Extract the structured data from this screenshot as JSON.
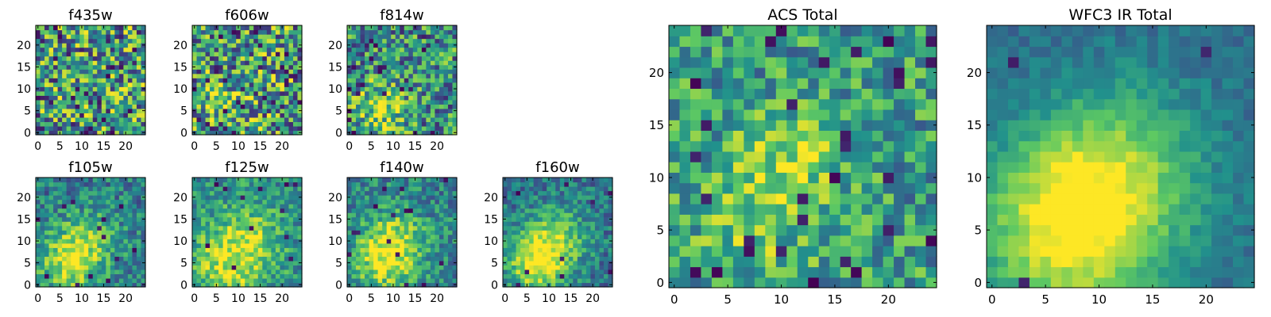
{
  "colormap": [
    "#440154",
    "#3b528b",
    "#21918c",
    "#5ec962",
    "#fde725"
  ],
  "chart_data": [
    {
      "type": "heatmap",
      "id": "f435w",
      "title": "f435w",
      "size": 25,
      "xlim": [
        0,
        24
      ],
      "ylim": [
        0,
        24
      ],
      "xticks": [
        0,
        5,
        10,
        15,
        20
      ],
      "yticks": [
        0,
        5,
        10,
        15,
        20
      ],
      "seed": 11,
      "noise": 0.9,
      "bg": 0.55,
      "blobs": [],
      "holes": 0.05
    },
    {
      "type": "heatmap",
      "id": "f606w",
      "title": "f606w",
      "size": 25,
      "xlim": [
        0,
        24
      ],
      "ylim": [
        0,
        24
      ],
      "xticks": [
        0,
        5,
        10,
        15,
        20
      ],
      "yticks": [
        0,
        5,
        10,
        15,
        20
      ],
      "seed": 23,
      "noise": 0.9,
      "bg": 0.55,
      "blobs": [
        {
          "x": 7,
          "y": 6,
          "r": 4,
          "a": 0.2
        }
      ],
      "holes": 0.05
    },
    {
      "type": "heatmap",
      "id": "f814w",
      "title": "f814w",
      "size": 25,
      "xlim": [
        0,
        24
      ],
      "ylim": [
        0,
        24
      ],
      "xticks": [
        0,
        5,
        10,
        15,
        20
      ],
      "yticks": [
        0,
        5,
        10,
        15,
        20
      ],
      "seed": 37,
      "noise": 0.75,
      "bg": 0.5,
      "blobs": [
        {
          "x": 7,
          "y": 6,
          "r": 4,
          "a": 0.35
        }
      ],
      "holes": 0.04
    },
    {
      "type": "heatmap",
      "id": "f105w",
      "title": "f105w",
      "size": 25,
      "xlim": [
        0,
        24
      ],
      "ylim": [
        0,
        24
      ],
      "xticks": [
        0,
        5,
        10,
        15,
        20
      ],
      "yticks": [
        0,
        5,
        10,
        15,
        20
      ],
      "seed": 41,
      "noise": 0.45,
      "bg": 0.42,
      "blobs": [
        {
          "x": 7,
          "y": 5,
          "r": 5,
          "a": 0.45
        },
        {
          "x": 12,
          "y": 11,
          "r": 5,
          "a": 0.25
        }
      ],
      "holes": 0.02
    },
    {
      "type": "heatmap",
      "id": "f125w",
      "title": "f125w",
      "size": 25,
      "xlim": [
        0,
        24
      ],
      "ylim": [
        0,
        24
      ],
      "xticks": [
        0,
        5,
        10,
        15,
        20
      ],
      "yticks": [
        0,
        5,
        10,
        15,
        20
      ],
      "seed": 53,
      "noise": 0.45,
      "bg": 0.5,
      "blobs": [
        {
          "x": 8,
          "y": 5,
          "r": 6,
          "a": 0.4
        },
        {
          "x": 13,
          "y": 12,
          "r": 5,
          "a": 0.2
        }
      ],
      "holes": 0.02
    },
    {
      "type": "heatmap",
      "id": "f140w",
      "title": "f140w",
      "size": 25,
      "xlim": [
        0,
        24
      ],
      "ylim": [
        0,
        24
      ],
      "xticks": [
        0,
        5,
        10,
        15,
        20
      ],
      "yticks": [
        0,
        5,
        10,
        15,
        20
      ],
      "seed": 67,
      "noise": 0.45,
      "bg": 0.45,
      "blobs": [
        {
          "x": 8,
          "y": 6,
          "r": 5,
          "a": 0.45
        },
        {
          "x": 11,
          "y": 11,
          "r": 5,
          "a": 0.25
        }
      ],
      "holes": 0.02
    },
    {
      "type": "heatmap",
      "id": "f160w",
      "title": "f160w",
      "size": 25,
      "xlim": [
        0,
        24
      ],
      "ylim": [
        0,
        24
      ],
      "xticks": [
        0,
        5,
        10,
        15,
        20
      ],
      "yticks": [
        0,
        5,
        10,
        15,
        20
      ],
      "seed": 79,
      "noise": 0.4,
      "bg": 0.38,
      "blobs": [
        {
          "x": 7,
          "y": 5,
          "r": 5,
          "a": 0.55
        },
        {
          "x": 12,
          "y": 11,
          "r": 5,
          "a": 0.35
        }
      ],
      "holes": 0.02
    },
    {
      "type": "heatmap",
      "id": "acs_total",
      "title": "ACS Total",
      "size": 25,
      "xlim": [
        0,
        24
      ],
      "ylim": [
        0,
        24
      ],
      "xticks": [
        0,
        5,
        10,
        15,
        20
      ],
      "yticks": [
        0,
        5,
        10,
        15,
        20
      ],
      "seed": 97,
      "noise": 0.55,
      "bg": 0.55,
      "blobs": [
        {
          "x": 11,
          "y": 12,
          "r": 3,
          "a": 0.3
        },
        {
          "x": 8,
          "y": 6,
          "r": 4,
          "a": 0.2
        }
      ],
      "holes": 0.05
    },
    {
      "type": "heatmap",
      "id": "wfc3_ir_total",
      "title": "WFC3 IR Total",
      "size": 25,
      "xlim": [
        0,
        24
      ],
      "ylim": [
        0,
        24
      ],
      "xticks": [
        0,
        5,
        10,
        15,
        20
      ],
      "yticks": [
        0,
        5,
        10,
        15,
        20
      ],
      "seed": 103,
      "noise": 0.18,
      "bg": 0.35,
      "blobs": [
        {
          "x": 7,
          "y": 5,
          "r": 6,
          "a": 0.6
        },
        {
          "x": 12,
          "y": 11,
          "r": 6,
          "a": 0.35
        }
      ],
      "holes": 0.015
    }
  ]
}
